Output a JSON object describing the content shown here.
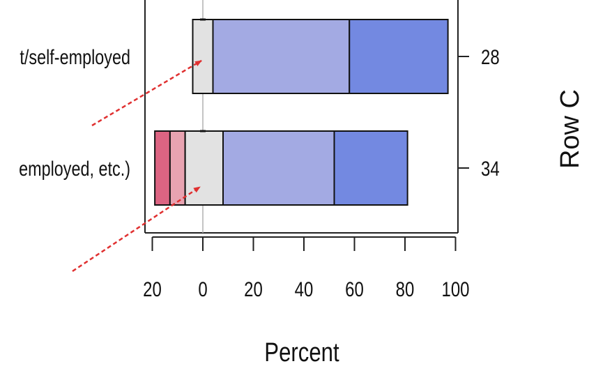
{
  "chart_data": {
    "type": "bar",
    "stacked": "diverging",
    "xlabel": "Percent",
    "right_axis_title_fragment": "Row C",
    "xlim": [
      -20,
      100
    ],
    "x_ticks": [
      -20,
      0,
      20,
      40,
      60,
      80,
      100
    ],
    "x_tick_labels": [
      "20",
      "0",
      "20",
      "40",
      "60",
      "80",
      "100"
    ],
    "rows": [
      {
        "label": "t/self-employed",
        "count_label": "28",
        "segments": [
          {
            "from": -4,
            "to": 4,
            "color": "#e2e2e2"
          },
          {
            "from": 4,
            "to": 58,
            "color": "#a3aae3"
          },
          {
            "from": 58,
            "to": 97,
            "color": "#7389e1"
          }
        ]
      },
      {
        "label": "employed, etc.)",
        "count_label": "34",
        "segments": [
          {
            "from": -19,
            "to": -13,
            "color": "#dc6482"
          },
          {
            "from": -13,
            "to": -7,
            "color": "#e8a3b1"
          },
          {
            "from": -7,
            "to": 8,
            "color": "#e2e2e2"
          },
          {
            "from": 8,
            "to": 52,
            "color": "#a3aae3"
          },
          {
            "from": 52,
            "to": 81,
            "color": "#7389e1"
          }
        ]
      }
    ],
    "annotation_color": "#e03030",
    "grid": false
  }
}
